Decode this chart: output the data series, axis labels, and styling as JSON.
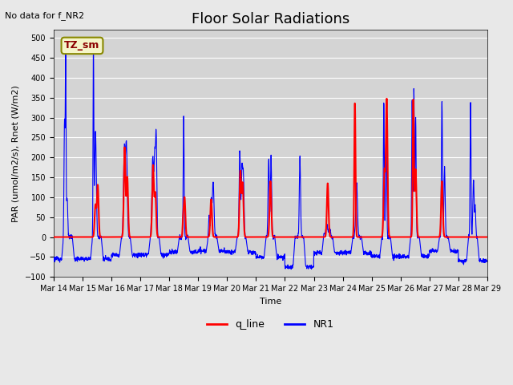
{
  "title": "Floor Solar Radiations",
  "annotation": "No data for f_NR2",
  "legend_box_label": "TZ_sm",
  "xlabel": "Time",
  "ylabel": "PAR (umol/m2/s), Rnet (W/m2)",
  "ylim": [
    -100,
    520
  ],
  "yticks": [
    -100,
    -50,
    0,
    50,
    100,
    150,
    200,
    250,
    300,
    350,
    400,
    450,
    500
  ],
  "bg_color": "#e8e8e8",
  "plot_bg_color": "#d4d4d4",
  "q_line_color": "red",
  "NR1_color": "blue",
  "legend_q_line": "q_line",
  "legend_NR1": "NR1",
  "title_fontsize": 13,
  "label_fontsize": 8,
  "tick_fontsize": 7
}
